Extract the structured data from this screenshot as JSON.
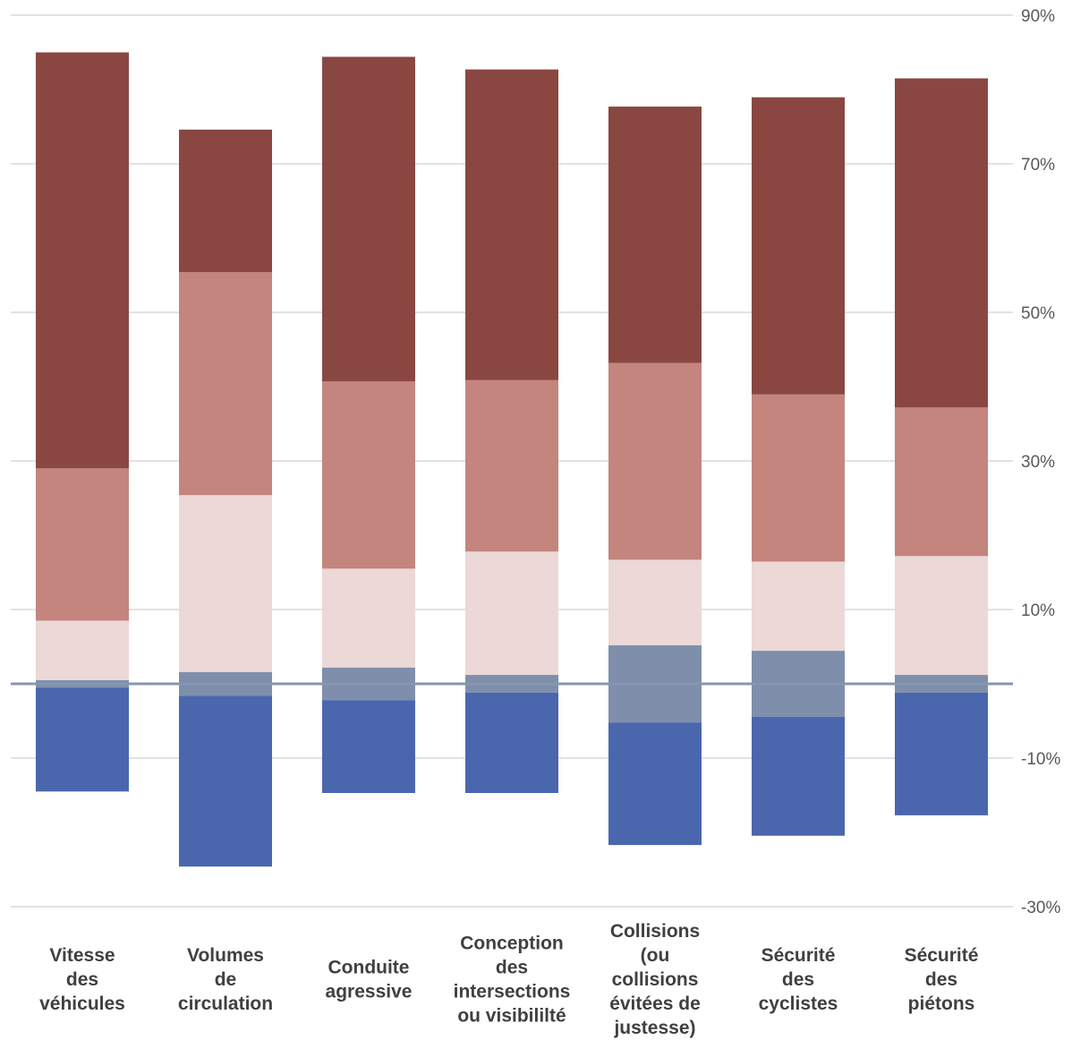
{
  "chart_data": {
    "type": "bar",
    "stacked": "diverging",
    "title": "",
    "xlabel": "",
    "ylabel": "",
    "ylim": [
      -30,
      90
    ],
    "yticks": [
      90,
      70,
      50,
      30,
      10,
      -10,
      -30
    ],
    "ytick_suffix": "%",
    "y_axis_position": "right",
    "grid": true,
    "legend": "none",
    "categories": [
      [
        "Vitesse",
        "des",
        "véhicules"
      ],
      [
        "Volumes",
        "de",
        "circulation"
      ],
      [
        "Conduite",
        "agressive"
      ],
      [
        "Conception",
        "des",
        "intersections",
        "ou visibililté"
      ],
      [
        "Collisions",
        "(ou",
        "collisions",
        "évitées de",
        "justesse)"
      ],
      [
        "Sécurité",
        "des",
        "cyclistes"
      ],
      [
        "Sécurité",
        "des",
        "piétons"
      ]
    ],
    "series": [
      {
        "color": "#4a67ae",
        "side": "negative",
        "values": [
          14,
          23,
          12.5,
          13.5,
          16.5,
          16,
          16.5
        ]
      },
      {
        "color": "#7f8fab",
        "side": "neutral",
        "values": [
          1,
          3.2,
          4.4,
          2.4,
          10.4,
          8.9,
          2.4
        ]
      },
      {
        "color": "#ecd8d6",
        "side": "positive",
        "values": [
          8,
          23.8,
          13.3,
          16.6,
          11.5,
          12,
          16
        ]
      },
      {
        "color": "#c3857d",
        "side": "positive",
        "values": [
          20.5,
          30,
          25.2,
          23.1,
          26.5,
          22.5,
          20
        ]
      },
      {
        "color": "#8a4741",
        "side": "positive",
        "values": [
          56,
          19.2,
          43.7,
          41.8,
          34.5,
          40,
          44.3
        ]
      }
    ]
  }
}
